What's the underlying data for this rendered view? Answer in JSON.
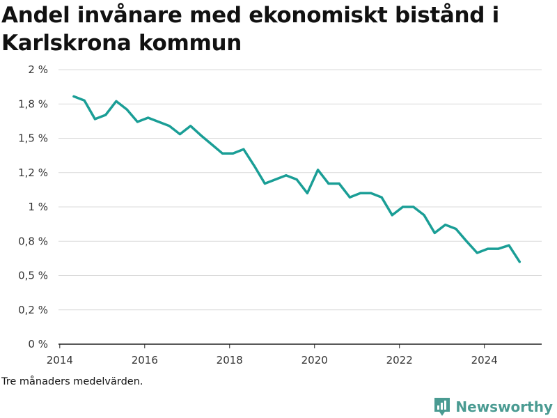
{
  "title": "Andel invånare med ekonomiskt bistånd i Karlskrona kommun",
  "note": "Tre månaders medelvärden.",
  "brand": {
    "name": "Newsworthy",
    "color": "#4a9b92"
  },
  "chart_data": {
    "type": "line",
    "title": "Andel invånare med ekonomiskt bistånd i Karlskrona kommun",
    "xlabel": "",
    "ylabel": "",
    "xlim": [
      2013.97,
      2025.35
    ],
    "ylim": [
      0,
      2
    ],
    "grid": true,
    "legend": "none",
    "line_color": "#1a9e96",
    "x_ticks": [
      2014,
      2016,
      2018,
      2020,
      2022,
      2024
    ],
    "x_tick_labels": [
      "2014",
      "2016",
      "2018",
      "2020",
      "2022",
      "2024"
    ],
    "y_ticks": [
      0,
      0.25,
      0.5,
      0.75,
      1,
      1.25,
      1.5,
      1.75,
      2
    ],
    "y_tick_labels": [
      "0 %",
      "0,2 %",
      "0,5 %",
      "0,8 %",
      "1 %",
      "1,2 %",
      "1,5 %",
      "1,8 %",
      "2 %"
    ],
    "series": [
      {
        "name": "",
        "x": [
          2014.33,
          2014.58,
          2014.83,
          2015.08,
          2015.33,
          2015.58,
          2015.83,
          2016.08,
          2016.33,
          2016.58,
          2016.83,
          2017.08,
          2017.33,
          2017.58,
          2017.83,
          2018.08,
          2018.33,
          2018.58,
          2018.83,
          2019.08,
          2019.33,
          2019.58,
          2019.83,
          2020.08,
          2020.33,
          2020.58,
          2020.83,
          2021.08,
          2021.33,
          2021.58,
          2021.83,
          2022.08,
          2022.33,
          2022.58,
          2022.83,
          2023.08,
          2023.33,
          2023.58,
          2023.83,
          2024.08,
          2024.33,
          2024.58,
          2024.83
        ],
        "values": [
          1.805,
          1.775,
          1.64,
          1.67,
          1.77,
          1.71,
          1.62,
          1.65,
          1.62,
          1.59,
          1.53,
          1.59,
          1.52,
          1.455,
          1.39,
          1.39,
          1.42,
          1.3,
          1.17,
          1.2,
          1.23,
          1.2,
          1.1,
          1.27,
          1.17,
          1.17,
          1.07,
          1.1,
          1.1,
          1.07,
          0.94,
          1.0,
          1.0,
          0.94,
          0.81,
          0.87,
          0.84,
          0.75,
          0.665,
          0.695,
          0.695,
          0.72,
          0.6
        ]
      }
    ]
  }
}
